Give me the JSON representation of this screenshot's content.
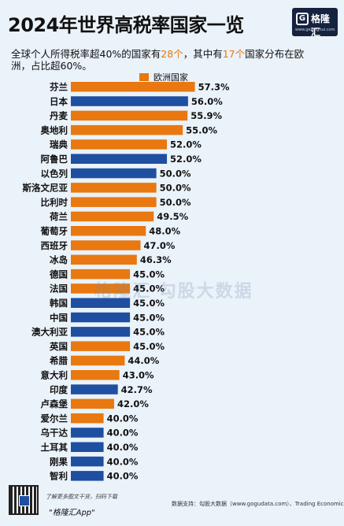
{
  "header": {
    "title": "2024年世界高税率国家一览",
    "subtitle_pre": "全球个人所得税率超40%的国家有",
    "subtitle_hl1": "28个",
    "subtitle_mid": "，其中有",
    "subtitle_hl2": "17个",
    "subtitle_post": "国家分布在欧洲，占比超60%。",
    "legend_label": "欧洲国家"
  },
  "logo": {
    "name": "格隆汇",
    "url": "www.gelonghui.com",
    "mark": "G"
  },
  "watermark": "格隆汇  勾股大数据",
  "footer": {
    "text1": "了解更多图文干货，扫码下载",
    "text2": "\"格隆汇App\"",
    "source": "数据支持：勾股大数据（www.gogudata.com）、Trading Economics"
  },
  "colors": {
    "europe": "#e8780f",
    "other": "#1e4fa0",
    "background": "#eaf2fa"
  },
  "chart_data": {
    "type": "bar",
    "orientation": "horizontal",
    "title": "2024年世界高税率国家一览",
    "categories": [
      "芬兰",
      "日本",
      "丹麦",
      "奥地利",
      "瑞典",
      "阿鲁巴",
      "以色列",
      "斯洛文尼亚",
      "比利时",
      "荷兰",
      "葡萄牙",
      "西班牙",
      "冰岛",
      "德国",
      "法国",
      "韩国",
      "中国",
      "澳大利亚",
      "英国",
      "希腊",
      "意大利",
      "印度",
      "卢森堡",
      "爱尔兰",
      "乌干达",
      "土耳其",
      "刚果",
      "智利"
    ],
    "values": [
      57.3,
      56.0,
      55.9,
      55.0,
      52.0,
      52.0,
      50.0,
      50.0,
      50.0,
      49.5,
      48.0,
      47.0,
      46.3,
      45.0,
      45.0,
      45.0,
      45.0,
      45.0,
      45.0,
      44.0,
      43.0,
      42.7,
      42.0,
      40.0,
      40.0,
      40.0,
      40.0,
      40.0
    ],
    "labels": [
      "57.3%",
      "56.0%",
      "55.9%",
      "55.0%",
      "52.0%",
      "52.0%",
      "50.0%",
      "50.0%",
      "50.0%",
      "49.5%",
      "48.0%",
      "47.0%",
      "46.3%",
      "45.0%",
      "45.0%",
      "45.0%",
      "45.0%",
      "45.0%",
      "45.0%",
      "44.0%",
      "43.0%",
      "42.7%",
      "42.0%",
      "40.0%",
      "40.0%",
      "40.0%",
      "40.0%",
      "40.0%"
    ],
    "europe": [
      true,
      false,
      true,
      true,
      true,
      false,
      false,
      true,
      true,
      true,
      true,
      true,
      true,
      true,
      true,
      false,
      false,
      false,
      true,
      true,
      true,
      false,
      true,
      true,
      false,
      false,
      false,
      false
    ],
    "legend": [
      "欧洲国家"
    ],
    "legend_position": "top"
  }
}
